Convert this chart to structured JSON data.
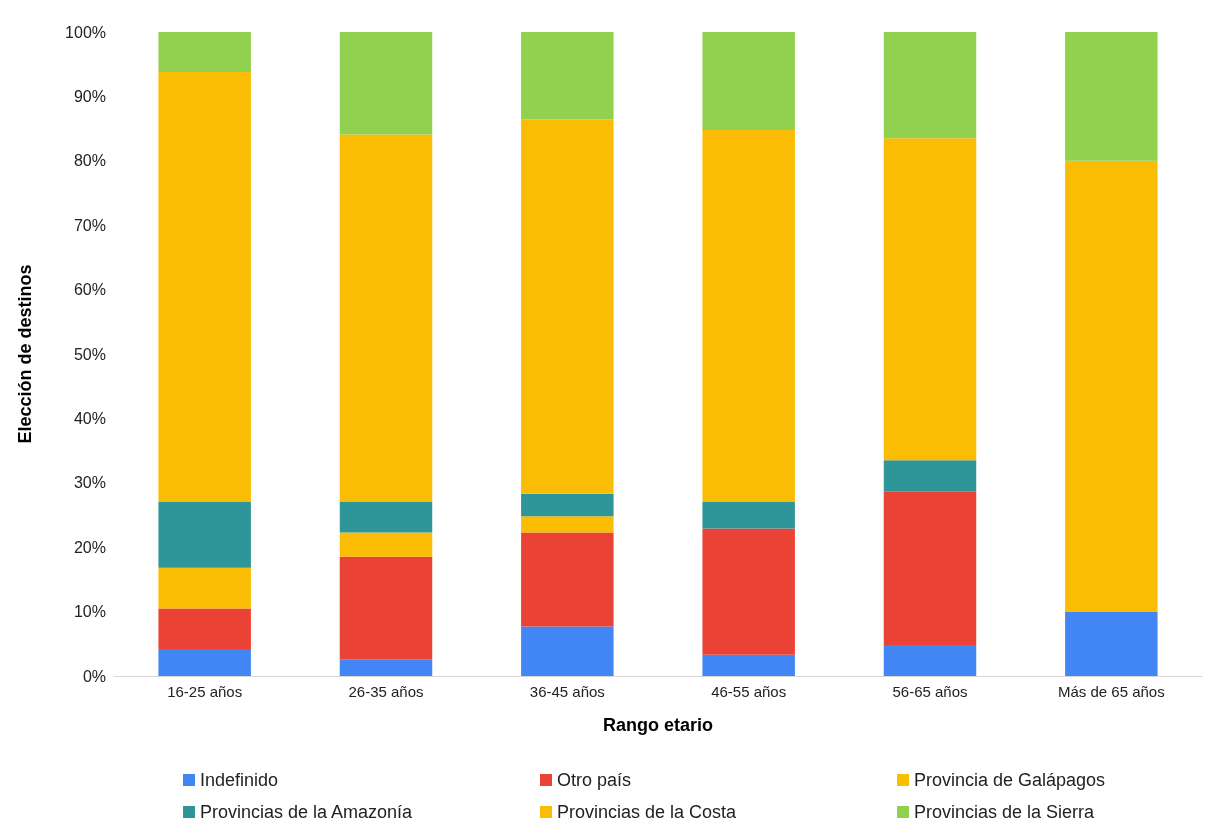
{
  "chart_data": {
    "type": "bar",
    "stacked": true,
    "xlabel": "Rango etario",
    "ylabel": "Elección de destinos",
    "categories": [
      "16-25 años",
      "26-35 años",
      "36-45 años",
      "46-55 años",
      "56-65 años",
      "Más de 65 años"
    ],
    "series": [
      {
        "name": "Indefinido",
        "color": "#4285f4",
        "values": [
          4.2,
          2.6,
          7.7,
          3.3,
          4.8,
          10
        ]
      },
      {
        "name": "Otro país",
        "color": "#ea4335",
        "values": [
          6.3,
          15.9,
          14.6,
          19.6,
          23.8,
          0
        ]
      },
      {
        "name": "Provincia de Galápagos",
        "color": "#fbbc04",
        "values": [
          6.3,
          3.8,
          2.5,
          0,
          0,
          0
        ]
      },
      {
        "name": "Provincias de la Amazonía",
        "color": "#2e9599",
        "values": [
          10.3,
          4.8,
          3.5,
          4.2,
          4.9,
          0
        ]
      },
      {
        "name": "Provincias de la Costa",
        "color": "#fbbc04",
        "values": [
          66.7,
          57.0,
          58.1,
          57.7,
          50.0,
          70
        ]
      },
      {
        "name": "Provincias de la Sierra",
        "color": "#92d050",
        "values": [
          6.2,
          15.9,
          13.6,
          15.2,
          16.5,
          20
        ]
      }
    ],
    "ylim": [
      0,
      100
    ],
    "yticks": [
      {
        "value": 0,
        "label": "0%"
      },
      {
        "value": 10,
        "label": "10%"
      },
      {
        "value": 20,
        "label": "20%"
      },
      {
        "value": 30,
        "label": "30%"
      },
      {
        "value": 40,
        "label": "40%"
      },
      {
        "value": 50,
        "label": "50%"
      },
      {
        "value": 60,
        "label": "60%"
      },
      {
        "value": 70,
        "label": "70%"
      },
      {
        "value": 80,
        "label": "80%"
      },
      {
        "value": 90,
        "label": "90%"
      },
      {
        "value": 100,
        "label": "100%"
      }
    ],
    "grid": false,
    "legend": "bottom"
  }
}
